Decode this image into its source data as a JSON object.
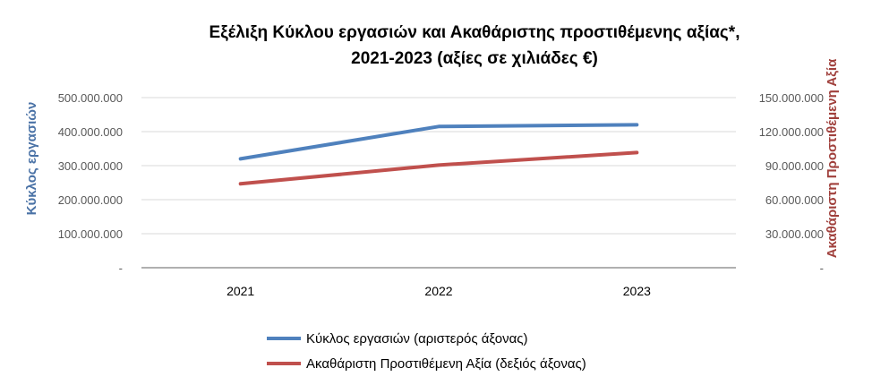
{
  "chart_data": {
    "type": "line",
    "title_line1": "Εξέλιξη Κύκλου εργασιών και Ακαθάριστης προστιθέμενης αξίας*,",
    "title_line2": "2021-2023 (αξίες σε χιλιάδες €)",
    "categories": [
      "2021",
      "2022",
      "2023"
    ],
    "ylabel_left": "Κύκλος εργασιών",
    "ylabel_right": "Ακαθάριστη Προστιθέμενη Αξία",
    "ylim_left": [
      0,
      500000000
    ],
    "ylim_right": [
      0,
      150000000
    ],
    "yticks_left": [
      "-",
      "100.000.000",
      "200.000.000",
      "300.000.000",
      "400.000.000",
      "500.000.000"
    ],
    "yticks_right": [
      "-",
      "30.000.000",
      "60.000.000",
      "90.000.000",
      "120.000.000",
      "150.000.000"
    ],
    "grid": "horizontal",
    "legend_position": "bottom",
    "series": [
      {
        "name": "Κύκλος εργασιών (αριστερός άξονας)",
        "axis": "left",
        "color": "#4f81bd",
        "values": [
          320000000,
          415000000,
          420000000
        ]
      },
      {
        "name": "Ακαθάριστη Προστιθέμενη Αξία (δεξιός άξονας)",
        "axis": "right",
        "color": "#c0504d",
        "values": [
          74000000,
          90500000,
          101500000
        ]
      }
    ]
  }
}
